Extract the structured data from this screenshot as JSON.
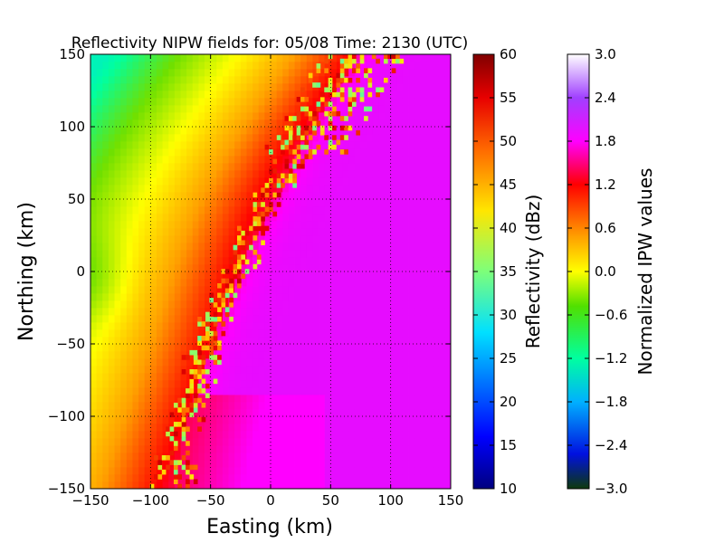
{
  "chart_data": {
    "type": "heatmap",
    "title": "Reflectivity NIPW fields for: 05/08 Time: 2130 (UTC)",
    "xlabel": "Easting (km)",
    "ylabel": "Northing (km)",
    "xlim": [
      -150,
      150
    ],
    "ylim": [
      -150,
      150
    ],
    "x_ticks": [
      -150,
      -100,
      -50,
      0,
      50,
      100,
      150
    ],
    "y_ticks": [
      -150,
      -100,
      -50,
      0,
      50,
      100,
      150
    ],
    "x_tick_labels": [
      "−150",
      "−100",
      "−50",
      "0",
      "50",
      "100",
      "150"
    ],
    "y_tick_labels": [
      "−150",
      "−100",
      "−50",
      "0",
      "50",
      "100",
      "150"
    ],
    "grid": true,
    "colorbars": [
      {
        "label": "Reflectivity (dBz)",
        "range": [
          10,
          60
        ],
        "ticks": [
          "10",
          "15",
          "20",
          "25",
          "30",
          "35",
          "40",
          "45",
          "50",
          "55",
          "60"
        ],
        "colormap": [
          "#00008f",
          "#0000ff",
          "#00ffff",
          "#80ff80",
          "#ffff00",
          "#ff8000",
          "#ff0000",
          "#800000"
        ]
      },
      {
        "label": "Normalized IPW values",
        "range": [
          -3.0,
          3.0
        ],
        "ticks": [
          "−3.0",
          "−2.4",
          "−1.8",
          "−1.2",
          "−0.6",
          "0.0",
          "0.6",
          "1.2",
          "1.8",
          "2.4",
          "3.0"
        ],
        "colormap": [
          "#2a6e2a",
          "#0000ff",
          "#00d0ff",
          "#00ffa0",
          "#70e000",
          "#ffff00",
          "#ffa000",
          "#ff0000",
          "#ff00ff",
          "#9a30ff",
          "#ffffff"
        ]
      }
    ],
    "fields": {
      "normalized_ipw": "smooth background field: about −1.0 in the west rising to about 1.3 along the southwest–northeast boundary, about 1.9 in the southeast",
      "reflectivity": "convective band of 30–55 dBz cells along the boundary from about (−70, −150) to (130, 150)"
    }
  }
}
